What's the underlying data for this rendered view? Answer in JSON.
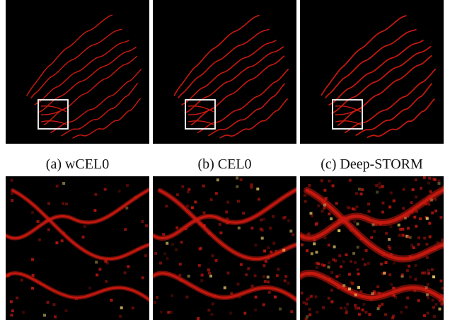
{
  "captions": {
    "a": "(a) wCEL0",
    "b": "(b) CEL0",
    "c": "(c) Deep-STORM"
  },
  "colors": {
    "background": "#000000",
    "signal": "#cc1a10",
    "highlight": "#ffe070",
    "roi_box": "#ffffff"
  }
}
